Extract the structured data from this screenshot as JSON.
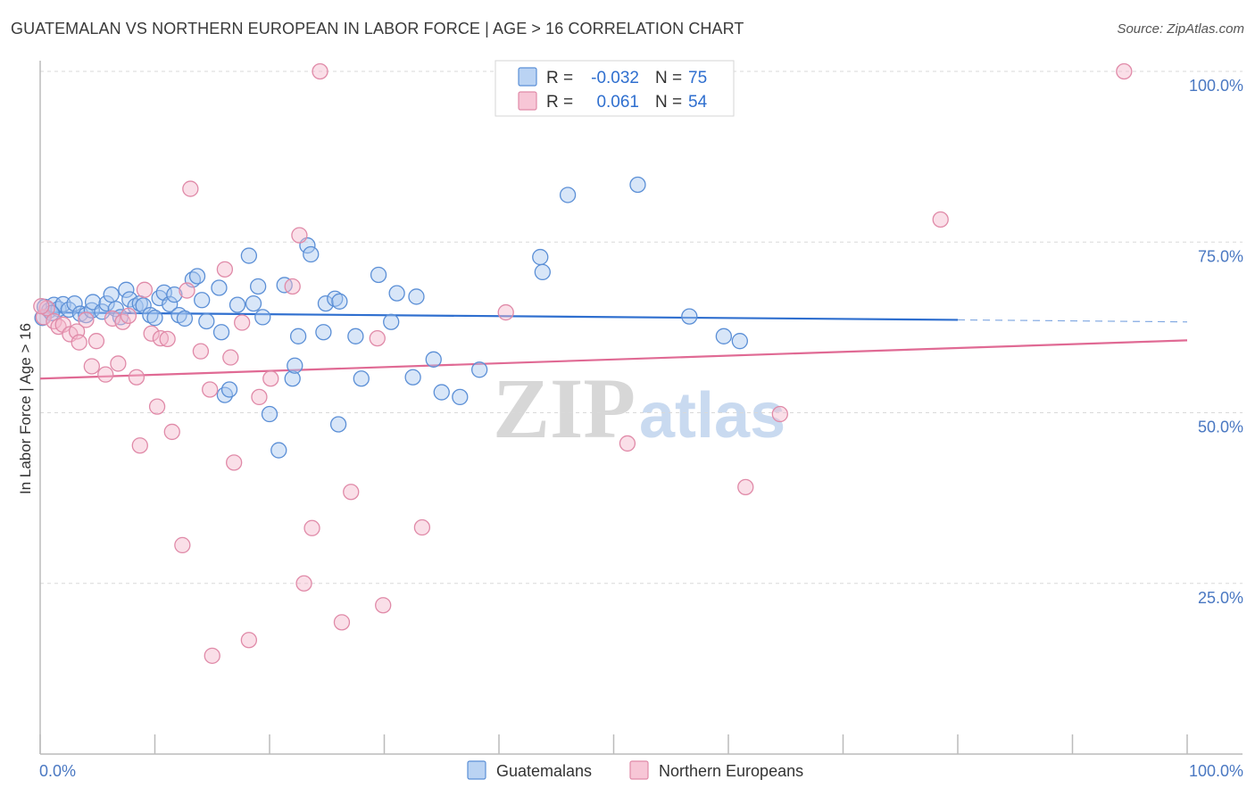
{
  "title": "GUATEMALAN VS NORTHERN EUROPEAN IN LABOR FORCE | AGE > 16 CORRELATION CHART",
  "source": "Source: ZipAtlas.com",
  "watermark": {
    "zip": "ZIP",
    "atlas": "atlas"
  },
  "colors": {
    "blue_fill": "#a9c8f0",
    "blue_stroke": "#5b8fd6",
    "blue_line": "#2f6fcf",
    "pink_fill": "#f5b8cc",
    "pink_stroke": "#e08aa8",
    "pink_line": "#e06a94",
    "grid": "#d9d9d9",
    "axis_text": "#4a78c2"
  },
  "legend": {
    "rows": [
      {
        "r_label": "R =",
        "r_value": "-0.032",
        "n_label": "N =",
        "n_value": "75",
        "series": "blue"
      },
      {
        "r_label": "R =",
        "r_value": "0.061",
        "n_label": "N =",
        "n_value": "54",
        "series": "pink"
      }
    ]
  },
  "chart_data": {
    "type": "scatter",
    "title": "GUATEMALAN VS NORTHERN EUROPEAN IN LABOR FORCE | AGE > 16 CORRELATION CHART",
    "xlabel": "",
    "ylabel": "In Labor Force | Age > 16",
    "xlim": [
      0,
      100
    ],
    "ylim": [
      0,
      100
    ],
    "x_tick_labels": [
      {
        "value": 0,
        "label": "0.0%"
      },
      {
        "value": 100,
        "label": "100.0%"
      }
    ],
    "y_tick_labels": [
      {
        "value": 25,
        "label": "25.0%"
      },
      {
        "value": 50,
        "label": "50.0%"
      },
      {
        "value": 75,
        "label": "75.0%"
      },
      {
        "value": 100,
        "label": "100.0%"
      }
    ],
    "grid": true,
    "legend_position": "top-center",
    "series": [
      {
        "name": "Guatemalans",
        "color": "blue",
        "trend": {
          "x": [
            0,
            80
          ],
          "y": [
            64.7,
            63.6
          ],
          "dashed_extension": {
            "x": [
              80,
              100
            ],
            "y": [
              63.6,
              63.3
            ]
          }
        },
        "points": [
          [
            0.4,
            65.5
          ],
          [
            0.8,
            65.0
          ],
          [
            1.2,
            65.8
          ],
          [
            1.6,
            65.2
          ],
          [
            2.0,
            65.9
          ],
          [
            2.5,
            65.1
          ],
          [
            3.0,
            66.0
          ],
          [
            3.5,
            64.5
          ],
          [
            4.0,
            64.3
          ],
          [
            4.5,
            65.0
          ],
          [
            4.6,
            66.2
          ],
          [
            5.4,
            64.8
          ],
          [
            5.8,
            66.0
          ],
          [
            6.2,
            67.3
          ],
          [
            6.6,
            65.2
          ],
          [
            7.0,
            64.0
          ],
          [
            7.5,
            68.0
          ],
          [
            7.8,
            66.6
          ],
          [
            8.3,
            65.6
          ],
          [
            8.7,
            66.0
          ],
          [
            9.0,
            65.7
          ],
          [
            9.6,
            64.3
          ],
          [
            10.0,
            63.9
          ],
          [
            10.4,
            66.8
          ],
          [
            10.8,
            67.6
          ],
          [
            11.3,
            65.9
          ],
          [
            11.7,
            67.3
          ],
          [
            12.1,
            64.3
          ],
          [
            12.6,
            63.8
          ],
          [
            13.3,
            69.5
          ],
          [
            13.7,
            70.0
          ],
          [
            14.1,
            66.5
          ],
          [
            14.5,
            63.4
          ],
          [
            15.6,
            68.3
          ],
          [
            15.8,
            61.8
          ],
          [
            16.1,
            52.6
          ],
          [
            16.5,
            53.4
          ],
          [
            17.2,
            65.8
          ],
          [
            18.2,
            73.0
          ],
          [
            18.6,
            66.0
          ],
          [
            19.0,
            68.5
          ],
          [
            19.4,
            64.0
          ],
          [
            20.0,
            49.8
          ],
          [
            20.8,
            44.5
          ],
          [
            21.3,
            68.7
          ],
          [
            22.0,
            55.0
          ],
          [
            22.2,
            56.9
          ],
          [
            22.5,
            61.2
          ],
          [
            23.3,
            74.5
          ],
          [
            23.6,
            73.2
          ],
          [
            24.9,
            66.0
          ],
          [
            24.7,
            61.8
          ],
          [
            25.7,
            66.7
          ],
          [
            26.1,
            66.3
          ],
          [
            26.0,
            48.3
          ],
          [
            27.5,
            61.2
          ],
          [
            28.0,
            55.0
          ],
          [
            29.5,
            70.2
          ],
          [
            30.6,
            63.3
          ],
          [
            31.1,
            67.5
          ],
          [
            32.5,
            55.2
          ],
          [
            32.8,
            67.0
          ],
          [
            34.3,
            57.8
          ],
          [
            35.0,
            53.0
          ],
          [
            36.6,
            52.3
          ],
          [
            38.3,
            56.3
          ],
          [
            43.6,
            72.8
          ],
          [
            43.8,
            70.6
          ],
          [
            46.0,
            81.9
          ],
          [
            52.1,
            83.4
          ],
          [
            56.6,
            64.1
          ],
          [
            59.6,
            61.2
          ],
          [
            61.0,
            60.5
          ],
          [
            0.2,
            63.9
          ],
          [
            1.0,
            64.6
          ]
        ]
      },
      {
        "name": "Northern Europeans",
        "color": "pink",
        "trend": {
          "x": [
            0,
            100
          ],
          "y": [
            55.0,
            60.6
          ]
        },
        "points": [
          [
            0.3,
            64.0
          ],
          [
            0.6,
            65.3
          ],
          [
            1.2,
            63.4
          ],
          [
            1.6,
            62.6
          ],
          [
            2.0,
            62.9
          ],
          [
            2.6,
            61.5
          ],
          [
            3.2,
            61.9
          ],
          [
            3.4,
            60.3
          ],
          [
            4.0,
            63.6
          ],
          [
            4.5,
            56.8
          ],
          [
            4.9,
            60.5
          ],
          [
            5.7,
            55.6
          ],
          [
            6.3,
            63.8
          ],
          [
            6.8,
            57.2
          ],
          [
            7.2,
            63.3
          ],
          [
            7.7,
            64.2
          ],
          [
            8.4,
            55.2
          ],
          [
            8.7,
            45.2
          ],
          [
            9.1,
            68.0
          ],
          [
            9.7,
            61.6
          ],
          [
            10.2,
            50.9
          ],
          [
            10.5,
            60.9
          ],
          [
            11.1,
            60.8
          ],
          [
            11.5,
            47.2
          ],
          [
            12.4,
            30.6
          ],
          [
            12.8,
            67.9
          ],
          [
            13.1,
            82.8
          ],
          [
            14.0,
            59.0
          ],
          [
            14.8,
            53.4
          ],
          [
            15.0,
            14.4
          ],
          [
            16.1,
            71.0
          ],
          [
            16.6,
            58.1
          ],
          [
            16.9,
            42.7
          ],
          [
            17.6,
            63.2
          ],
          [
            18.2,
            16.7
          ],
          [
            19.1,
            52.3
          ],
          [
            20.1,
            55.0
          ],
          [
            22.0,
            68.5
          ],
          [
            22.6,
            76.0
          ],
          [
            23.0,
            25.0
          ],
          [
            23.7,
            33.1
          ],
          [
            24.4,
            100.0
          ],
          [
            26.3,
            19.3
          ],
          [
            27.1,
            38.4
          ],
          [
            29.4,
            60.9
          ],
          [
            29.9,
            21.8
          ],
          [
            33.3,
            33.2
          ],
          [
            40.6,
            64.7
          ],
          [
            51.2,
            45.5
          ],
          [
            61.5,
            39.1
          ],
          [
            64.5,
            49.8
          ],
          [
            78.5,
            78.3
          ],
          [
            94.5,
            100.0
          ],
          [
            0.1,
            65.6
          ]
        ]
      }
    ]
  },
  "bottom_legend": [
    {
      "label": "Guatemalans",
      "series": "blue"
    },
    {
      "label": "Northern Europeans",
      "series": "pink"
    }
  ]
}
